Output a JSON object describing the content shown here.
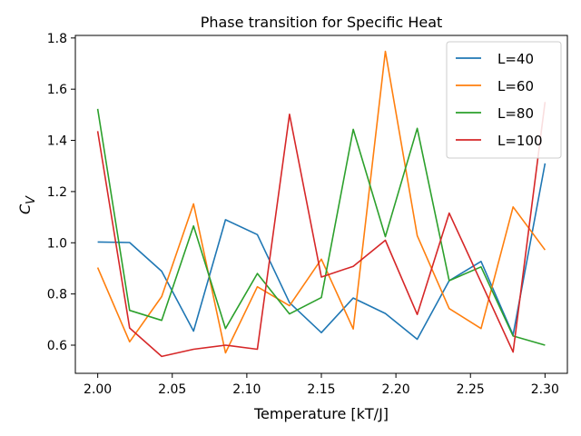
{
  "chart_data": {
    "type": "line",
    "title": "Phase transition for Specific Heat",
    "xlabel": "Temperature [kT/J]",
    "ylabel_main": "C",
    "ylabel_sub": "V",
    "xlim": [
      1.985,
      2.315
    ],
    "ylim": [
      0.49,
      1.81
    ],
    "xticks": [
      2.0,
      2.05,
      2.1,
      2.15,
      2.2,
      2.25,
      2.3
    ],
    "xtick_labels": [
      "2.00",
      "2.05",
      "2.10",
      "2.15",
      "2.20",
      "2.25",
      "2.30"
    ],
    "yticks": [
      0.6,
      0.8,
      1.0,
      1.2,
      1.4,
      1.6,
      1.8
    ],
    "ytick_labels": [
      "0.6",
      "0.8",
      "1.0",
      "1.2",
      "1.4",
      "1.6",
      "1.8"
    ],
    "legend_position": "top-right",
    "grid": false,
    "x": [
      2.0,
      2.0214,
      2.0429,
      2.0643,
      2.0857,
      2.1071,
      2.1286,
      2.15,
      2.1714,
      2.1929,
      2.2143,
      2.2357,
      2.2571,
      2.2786,
      2.3
    ],
    "series": [
      {
        "name": "L=40",
        "color": "#1f77b4",
        "values": [
          1.003,
          1.001,
          0.889,
          0.655,
          1.09,
          1.032,
          0.766,
          0.649,
          0.784,
          0.724,
          0.623,
          0.852,
          0.927,
          0.64,
          1.31
        ]
      },
      {
        "name": "L=60",
        "color": "#ff7f0e",
        "values": [
          0.903,
          0.613,
          0.79,
          1.152,
          0.57,
          0.828,
          0.754,
          0.936,
          0.663,
          1.748,
          1.028,
          0.743,
          0.665,
          1.14,
          0.972
        ]
      },
      {
        "name": "L=80",
        "color": "#2ca02c",
        "values": [
          1.523,
          0.736,
          0.697,
          1.066,
          0.665,
          0.88,
          0.722,
          0.786,
          1.443,
          1.024,
          1.447,
          0.852,
          0.906,
          0.636,
          0.6
        ]
      },
      {
        "name": "L=100",
        "color": "#d62728",
        "values": [
          1.436,
          0.667,
          0.556,
          0.584,
          0.6,
          0.584,
          1.502,
          0.866,
          0.908,
          1.01,
          0.72,
          1.116,
          0.846,
          0.573,
          1.55
        ]
      }
    ]
  }
}
